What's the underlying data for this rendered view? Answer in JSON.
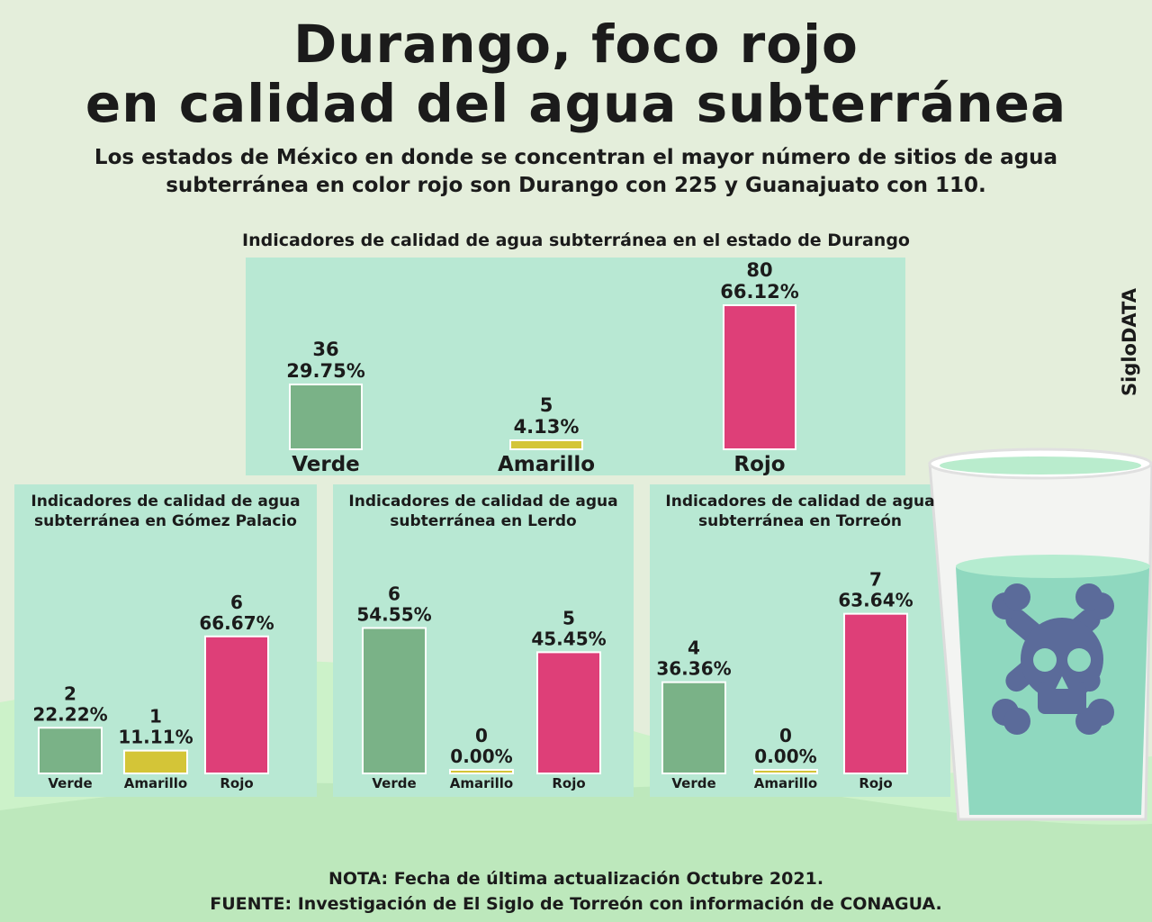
{
  "title": {
    "line1": "Durango, foco rojo",
    "line2": "en calidad del agua subterránea"
  },
  "subtitle": "Los estados de México en donde se concentran el mayor número de sitios de agua subterránea en color rojo son Durango con 225 y Guanajuato con 110.",
  "brand": "SigloDATA",
  "footer": {
    "note": "NOTA: Fecha de última actualización Octubre 2021.",
    "source": "FUENTE: Investigación de El Siglo de Torreón con información de CONAGUA."
  },
  "colors": {
    "verde": "#7ab287",
    "amarillo": "#d4c537",
    "rojo": "#de3f78",
    "panel": "#b8e8d3",
    "background": "#e4eedb",
    "hills": "#c8f2cc",
    "skull": "#5b6b9a"
  },
  "icons": [
    "skull-crossbones-icon",
    "water-glass-icon"
  ],
  "chart_data": [
    {
      "id": "durango",
      "type": "bar",
      "title": "Indicadores de calidad de agua subterránea en el estado de Durango",
      "categories": [
        "Verde",
        "Amarillo",
        "Rojo"
      ],
      "values": [
        36,
        5,
        80
      ],
      "percent_labels": [
        "29.75%",
        "4.13%",
        "66.12%"
      ],
      "ylim": [
        0,
        80
      ]
    },
    {
      "id": "gomez",
      "type": "bar",
      "title": "Indicadores de calidad de agua subterránea en Gómez Palacio",
      "categories": [
        "Verde",
        "Amarillo",
        "Rojo"
      ],
      "values": [
        2,
        1,
        6
      ],
      "percent_labels": [
        "22.22%",
        "11.11%",
        "66.67%"
      ],
      "ylim": [
        0,
        8.2
      ]
    },
    {
      "id": "lerdo",
      "type": "bar",
      "title": "Indicadores de calidad de agua subterránea en Lerdo",
      "categories": [
        "Verde",
        "Amarillo",
        "Rojo"
      ],
      "values": [
        6,
        0,
        5
      ],
      "percent_labels": [
        "54.55%",
        "0.00%",
        "45.45%"
      ],
      "ylim": [
        0,
        7.8
      ]
    },
    {
      "id": "torreon",
      "type": "bar",
      "title": "Indicadores de calidad de agua subterránea en Torreón",
      "categories": [
        "Verde",
        "Amarillo",
        "Rojo"
      ],
      "values": [
        4,
        0,
        7
      ],
      "percent_labels": [
        "36.36%",
        "0.00%",
        "63.64%"
      ],
      "ylim": [
        0,
        9.0
      ]
    }
  ]
}
